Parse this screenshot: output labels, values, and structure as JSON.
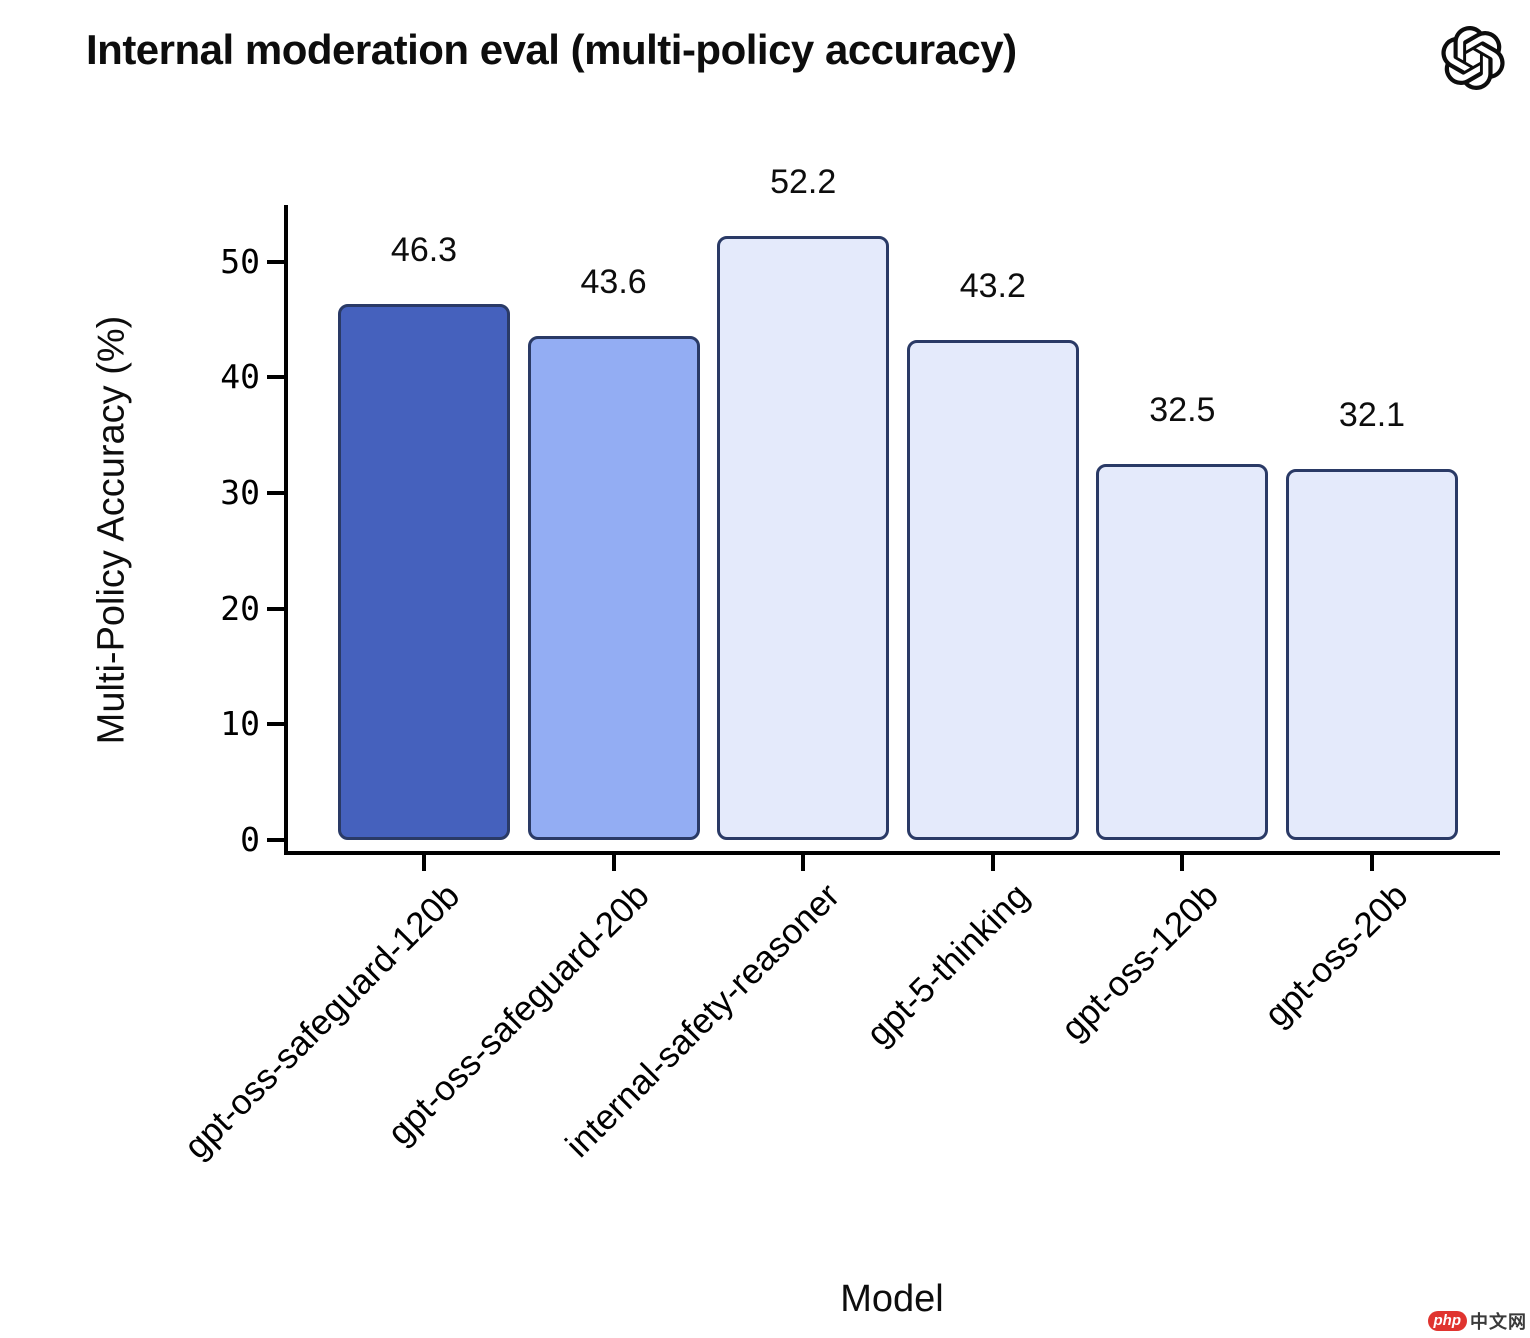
{
  "header": {
    "title": "Internal moderation eval (multi-policy accuracy)"
  },
  "chart_data": {
    "type": "bar",
    "title": "Internal moderation eval (multi-policy accuracy)",
    "categories": [
      "gpt-oss-safeguard-120b",
      "gpt-oss-safeguard-20b",
      "internal-safety-reasoner",
      "gpt-5-thinking",
      "gpt-oss-120b",
      "gpt-oss-20b"
    ],
    "values": [
      46.3,
      43.6,
      52.2,
      43.2,
      32.5,
      32.1
    ],
    "value_labels": [
      "46.3",
      "43.6",
      "52.2",
      "43.2",
      "32.5",
      "32.1"
    ],
    "xlabel": "Model",
    "ylabel": "Multi-Policy Accuracy (%)",
    "ylim": [
      0,
      54.9
    ],
    "yticks": [
      0,
      10,
      20,
      30,
      40,
      50
    ],
    "grid": false,
    "legend": null,
    "bar_colors": [
      "#4561bd",
      "#93adf3",
      "#e4eafb",
      "#e4eafb",
      "#e4eafb",
      "#e4eafb"
    ],
    "bar_border_color": "#2a3a66",
    "axis_color": "#000000"
  },
  "watermark": {
    "badge": "php",
    "badge_color": "#e0342f",
    "text": "中文网"
  }
}
